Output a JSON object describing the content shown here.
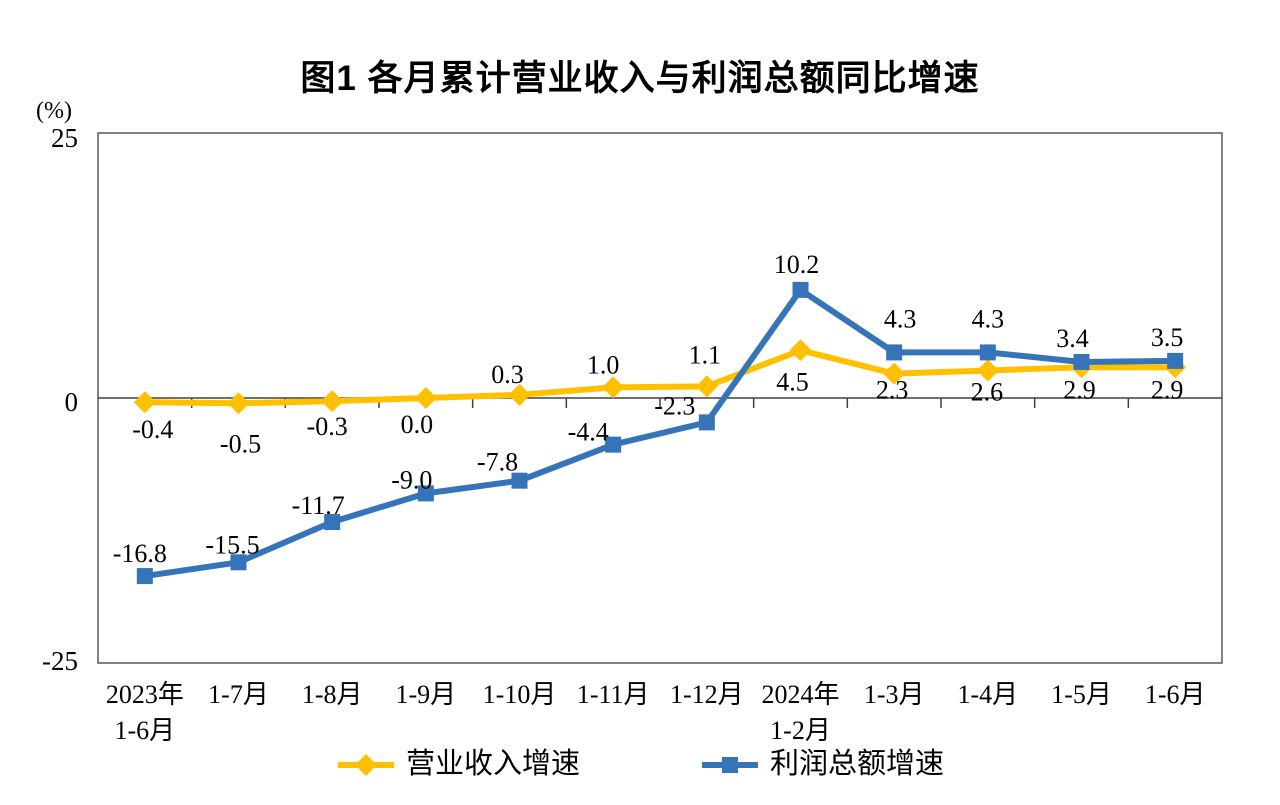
{
  "figure": {
    "title": "图1  各月累计营业收入与利润总额同比增速",
    "unit_label": "(%)"
  },
  "chart_data": {
    "type": "line",
    "title": "图1  各月累计营业收入与利润总额同比增速",
    "ylabel": "(%)",
    "categories": [
      [
        "2023年",
        "1-6月"
      ],
      [
        "1-7月"
      ],
      [
        "1-8月"
      ],
      [
        "1-9月"
      ],
      [
        "1-10月"
      ],
      [
        "1-11月"
      ],
      [
        "1-12月"
      ],
      [
        "2024年",
        "1-2月"
      ],
      [
        "1-3月"
      ],
      [
        "1-4月"
      ],
      [
        "1-5月"
      ],
      [
        "1-6月"
      ]
    ],
    "y_axis": {
      "min": -25,
      "max": 25,
      "ticks": [
        25,
        0,
        -25
      ]
    },
    "gridlines": false,
    "legend_position": "bottom",
    "series": [
      {
        "name": "营业收入增速",
        "color": "#FFC000",
        "marker": "diamond",
        "values": [
          -0.4,
          -0.5,
          -0.3,
          0.0,
          0.3,
          1.0,
          1.1,
          4.5,
          2.3,
          2.6,
          2.9,
          2.9
        ]
      },
      {
        "name": "利润总额增速",
        "color": "#3674B9",
        "marker": "square",
        "values": [
          -16.8,
          -15.5,
          -11.7,
          -9.0,
          -7.8,
          -4.4,
          -2.3,
          10.2,
          4.3,
          4.3,
          3.4,
          3.5
        ]
      }
    ],
    "layout_hints": {
      "label_offsets": [
        [
          [
            8,
            36
          ],
          [
            2,
            49
          ],
          [
            -5,
            34
          ],
          [
            -9,
            35
          ],
          [
            -12,
            -12
          ],
          [
            -10,
            -14
          ],
          [
            -2,
            -23
          ],
          [
            -8,
            40
          ],
          [
            -2,
            25
          ],
          [
            -1,
            30
          ],
          [
            -2,
            31
          ],
          [
            -8,
            31
          ]
        ],
        [
          [
            -5,
            -14
          ],
          [
            -6,
            -9
          ],
          [
            -14,
            -8
          ],
          [
            -14,
            -5
          ],
          [
            -22,
            -10
          ],
          [
            -25,
            -4
          ],
          [
            -32,
            -8
          ],
          [
            -4,
            -17
          ],
          [
            6,
            -25
          ],
          [
            0,
            -25
          ],
          [
            -9,
            -15
          ],
          [
            -8,
            -15
          ]
        ]
      ]
    }
  }
}
